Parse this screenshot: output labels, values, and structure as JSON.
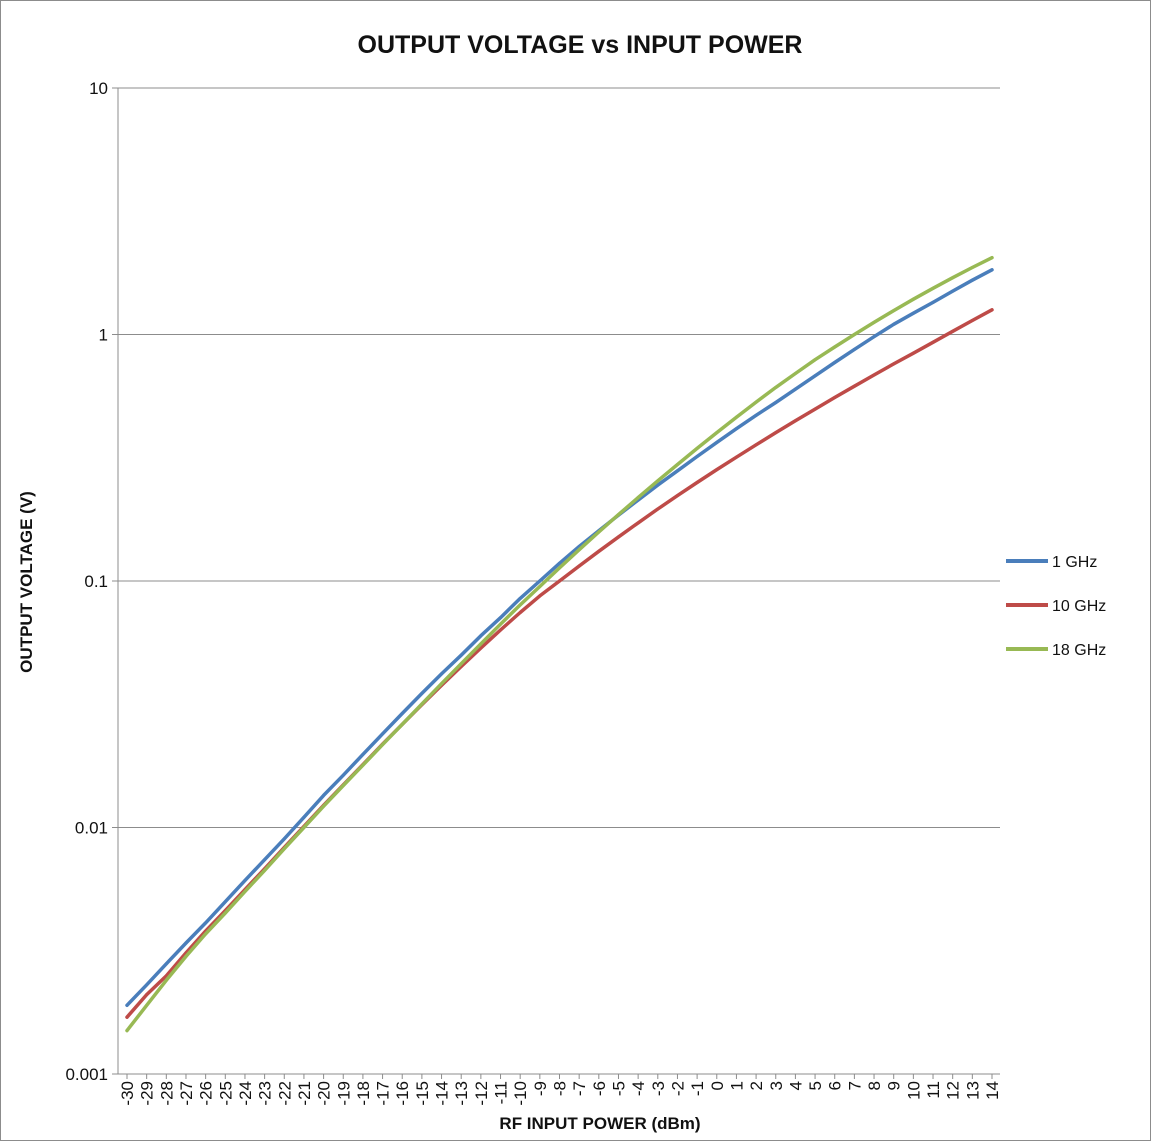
{
  "chart_data": {
    "type": "line",
    "title": "OUTPUT VOLTAGE vs INPUT POWER",
    "xlabel": "RF INPUT POWER (dBm)",
    "ylabel": "OUTPUT VOLTAGE (V)",
    "yscale": "log",
    "ylim": [
      0.001,
      10
    ],
    "y_ticks": [
      "0.001",
      "0.01",
      "0.1",
      "1",
      "10"
    ],
    "x": [
      -30,
      -29,
      -28,
      -27,
      -26,
      -25,
      -24,
      -23,
      -22,
      -21,
      -20,
      -19,
      -18,
      -17,
      -16,
      -15,
      -14,
      -13,
      -12,
      -11,
      -10,
      -9,
      -8,
      -7,
      -6,
      -5,
      -4,
      -3,
      -2,
      -1,
      0,
      1,
      2,
      3,
      4,
      5,
      6,
      7,
      8,
      9,
      10,
      11,
      12,
      13,
      14
    ],
    "x_tick_labels": [
      "-30",
      "-29",
      "-28",
      "-27",
      "-26",
      "-25",
      "-24",
      "-23",
      "-22",
      "-21",
      "-20",
      "-19",
      "-18",
      "-17",
      "-16",
      "-15",
      "-14",
      "-13",
      "-12",
      "-11",
      "-10",
      "-9",
      "-8",
      "-7",
      "-6",
      "-5",
      "-4",
      "-3",
      "-2",
      "-1",
      "0",
      "1",
      "2",
      "3",
      "4",
      "5",
      "6",
      "7",
      "8",
      "9",
      "10",
      "11",
      "12",
      "13",
      "14"
    ],
    "grid": "horizontal",
    "legend_position": "right",
    "series": [
      {
        "name": "1 GHz",
        "color": "#4a7ebb",
        "values": [
          0.0019,
          0.0023,
          0.0028,
          0.0034,
          0.0041,
          0.005,
          0.0061,
          0.0074,
          0.009,
          0.011,
          0.0135,
          0.0163,
          0.0198,
          0.024,
          0.029,
          0.035,
          0.042,
          0.05,
          0.06,
          0.071,
          0.085,
          0.1,
          0.118,
          0.138,
          0.16,
          0.185,
          0.213,
          0.245,
          0.28,
          0.32,
          0.365,
          0.415,
          0.47,
          0.53,
          0.6,
          0.68,
          0.77,
          0.87,
          0.98,
          1.1,
          1.22,
          1.35,
          1.5,
          1.66,
          1.83
        ]
      },
      {
        "name": "10 GHz",
        "color": "#be4b48",
        "values": [
          0.0017,
          0.0021,
          0.0025,
          0.0031,
          0.0038,
          0.0046,
          0.0056,
          0.0068,
          0.0083,
          0.0101,
          0.0123,
          0.0149,
          0.018,
          0.0218,
          0.0262,
          0.0315,
          0.0377,
          0.045,
          0.0535,
          0.0633,
          0.0745,
          0.087,
          0.1,
          0.115,
          0.132,
          0.151,
          0.172,
          0.196,
          0.222,
          0.251,
          0.283,
          0.318,
          0.357,
          0.4,
          0.447,
          0.498,
          0.555,
          0.617,
          0.685,
          0.76,
          0.84,
          0.93,
          1.03,
          1.14,
          1.26
        ]
      },
      {
        "name": "18 GHz",
        "color": "#98b954",
        "values": [
          0.0015,
          0.0019,
          0.0024,
          0.003,
          0.0037,
          0.0045,
          0.0055,
          0.0067,
          0.0082,
          0.01,
          0.0122,
          0.0148,
          0.0179,
          0.0217,
          0.0262,
          0.0317,
          0.0383,
          0.0462,
          0.0556,
          0.0668,
          0.08,
          0.095,
          0.113,
          0.134,
          0.158,
          0.186,
          0.218,
          0.255,
          0.297,
          0.345,
          0.4,
          0.462,
          0.532,
          0.61,
          0.695,
          0.79,
          0.89,
          1.0,
          1.12,
          1.25,
          1.39,
          1.54,
          1.7,
          1.87,
          2.05
        ]
      }
    ]
  }
}
